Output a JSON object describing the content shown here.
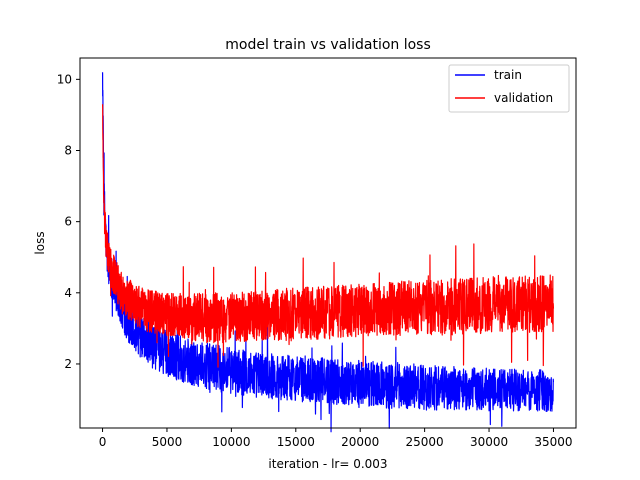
{
  "chart_data": {
    "type": "line",
    "title": "model train vs validation loss",
    "xlabel": "iteration - lr= 0.003",
    "ylabel": "loss",
    "xlim": [
      -1750,
      36750
    ],
    "ylim": [
      0.2,
      10.6
    ],
    "xticks": [
      0,
      5000,
      10000,
      15000,
      20000,
      25000,
      30000,
      35000
    ],
    "yticks": [
      2,
      4,
      6,
      8,
      10
    ],
    "grid": false,
    "legend": "top-right",
    "series": [
      {
        "name": "train",
        "color": "#0000ff",
        "x": [
          0,
          100,
          300,
          600,
          1000,
          1500,
          2000,
          3000,
          4000,
          5000,
          6000,
          8000,
          10000,
          12000,
          15000,
          17500,
          20000,
          22500,
          25000,
          27500,
          30000,
          32500,
          35000
        ],
        "values": [
          10.2,
          6.8,
          5.2,
          4.6,
          4.1,
          3.6,
          3.2,
          2.8,
          2.5,
          2.3,
          2.15,
          1.95,
          1.8,
          1.7,
          1.6,
          1.52,
          1.45,
          1.4,
          1.35,
          1.3,
          1.28,
          1.25,
          1.25
        ],
        "spread": [
          0.4,
          0.6,
          0.6,
          0.6,
          0.6,
          0.6,
          0.6,
          0.65,
          0.65,
          0.65,
          0.65,
          0.65,
          0.65,
          0.65,
          0.65,
          0.65,
          0.65,
          0.65,
          0.65,
          0.6,
          0.6,
          0.6,
          0.6
        ]
      },
      {
        "name": "validation",
        "color": "#ff0000",
        "x": [
          0,
          100,
          300,
          600,
          1000,
          1500,
          2000,
          3000,
          4000,
          5000,
          6000,
          8000,
          10000,
          12000,
          15000,
          17500,
          20000,
          22500,
          25000,
          27500,
          30000,
          32500,
          35000
        ],
        "values": [
          9.3,
          6.5,
          5.3,
          4.8,
          4.4,
          4.0,
          3.8,
          3.55,
          3.45,
          3.4,
          3.35,
          3.3,
          3.3,
          3.35,
          3.4,
          3.45,
          3.5,
          3.55,
          3.6,
          3.62,
          3.65,
          3.67,
          3.7
        ],
        "spread": [
          0.3,
          0.5,
          0.55,
          0.55,
          0.55,
          0.6,
          0.6,
          0.6,
          0.6,
          0.6,
          0.65,
          0.7,
          0.7,
          0.7,
          0.75,
          0.75,
          0.75,
          0.75,
          0.8,
          0.8,
          0.8,
          0.8,
          0.8
        ]
      }
    ]
  }
}
